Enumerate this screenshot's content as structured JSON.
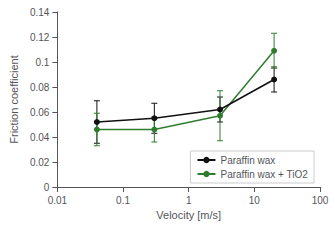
{
  "chart_data": {
    "type": "line",
    "xlabel": "Velocity [m/s]",
    "ylabel": "Friction coefficient",
    "log": "x",
    "x": [
      0.04,
      0.3,
      3.0,
      20.0
    ],
    "series": [
      {
        "name": "Paraffin wax",
        "color": "#111111",
        "values": [
          0.052,
          0.055,
          0.062,
          0.086
        ],
        "yerr": [
          0.017,
          0.012,
          0.01,
          0.01
        ]
      },
      {
        "name": "Paraffin wax + TiO2",
        "color": "#2e7d2e",
        "values": [
          0.046,
          0.046,
          0.057,
          0.109
        ],
        "yerr": [
          0.013,
          0.01,
          0.02,
          0.014
        ]
      }
    ],
    "xlim": [
      0.01,
      100
    ],
    "xticks": [
      0.01,
      0.1,
      1,
      10,
      100
    ],
    "ylim": [
      0,
      0.14
    ],
    "yticks": [
      0,
      0.02,
      0.04,
      0.06,
      0.08,
      0.1,
      0.12,
      0.14
    ],
    "marker": "circle",
    "grid": false,
    "legend": "lower right"
  }
}
